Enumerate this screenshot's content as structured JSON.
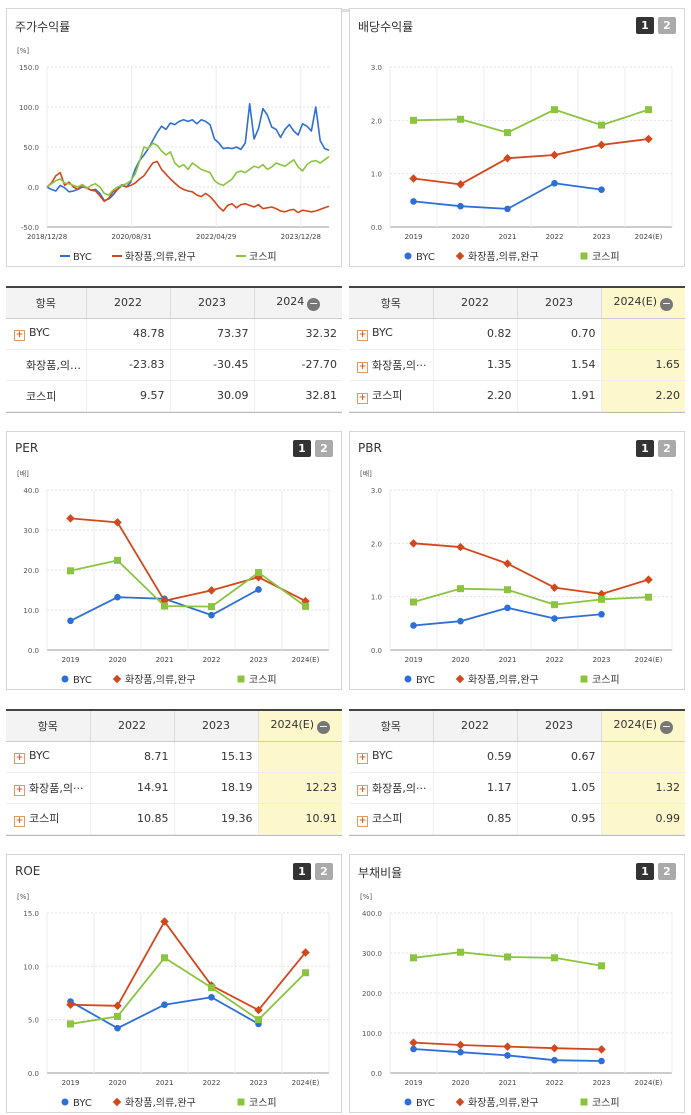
{
  "colors": {
    "byc": "#2d6fd6",
    "cosmetics": "#d2481c",
    "kospi": "#8bc43f"
  },
  "legend": {
    "byc": "BYC",
    "cosmetics": "화장품,의류,완구",
    "kospi": "코스피"
  },
  "buttons": {
    "one": "1",
    "two": "2"
  },
  "panels": {
    "return": {
      "title": "주가수익률"
    },
    "dividend": {
      "title": "배당수익률"
    },
    "per": {
      "title": "PER"
    },
    "pbr": {
      "title": "PBR"
    },
    "roe": {
      "title": "ROE"
    },
    "debt": {
      "title": "부채비율"
    }
  },
  "tables": {
    "return": {
      "header": [
        "항목",
        "2022",
        "2023",
        "2024"
      ],
      "rows": [
        {
          "name": "BYC",
          "vals": [
            "48.78",
            "73.37",
            "32.32"
          ]
        },
        {
          "name": "화장품,의…",
          "vals": [
            "-23.83",
            "-30.45",
            "-27.70"
          ]
        },
        {
          "name": "코스피",
          "vals": [
            "9.57",
            "30.09",
            "32.81"
          ]
        }
      ]
    },
    "dividend": {
      "header": [
        "항목",
        "2022",
        "2023",
        "2024(E)"
      ],
      "rows": [
        {
          "name": "BYC",
          "vals": [
            "0.82",
            "0.70",
            ""
          ]
        },
        {
          "name": "화장품,의···",
          "vals": [
            "1.35",
            "1.54",
            "1.65"
          ]
        },
        {
          "name": "코스피",
          "vals": [
            "2.20",
            "1.91",
            "2.20"
          ]
        }
      ]
    },
    "per": {
      "header": [
        "항목",
        "2022",
        "2023",
        "2024(E)"
      ],
      "rows": [
        {
          "name": "BYC",
          "vals": [
            "8.71",
            "15.13",
            ""
          ]
        },
        {
          "name": "화장품,의···",
          "vals": [
            "14.91",
            "18.19",
            "12.23"
          ]
        },
        {
          "name": "코스피",
          "vals": [
            "10.85",
            "19.36",
            "10.91"
          ]
        }
      ]
    },
    "pbr": {
      "header": [
        "항목",
        "2022",
        "2023",
        "2024(E)"
      ],
      "rows": [
        {
          "name": "BYC",
          "vals": [
            "0.59",
            "0.67",
            ""
          ]
        },
        {
          "name": "화장품,의···",
          "vals": [
            "1.17",
            "1.05",
            "1.32"
          ]
        },
        {
          "name": "코스피",
          "vals": [
            "0.85",
            "0.95",
            "0.99"
          ]
        }
      ]
    }
  },
  "chart_data": [
    {
      "id": "return",
      "type": "line",
      "unit": "[%]",
      "ylim": [
        -50,
        150
      ],
      "yticks": [
        "150.0",
        "100.0",
        "50.0",
        "0.0",
        "-50.0"
      ],
      "xticks": [
        "2018/12/28",
        "2020/08/31",
        "2022/04/29",
        "2023/12/28"
      ],
      "series": [
        {
          "name": "BYC",
          "values": [
            0,
            -3,
            -5,
            2,
            -1,
            -6,
            -5,
            -3,
            0,
            -1,
            -4,
            -3,
            -8,
            -17,
            -15,
            -10,
            -3,
            2,
            0,
            6,
            22,
            33,
            40,
            48,
            58,
            68,
            76,
            72,
            80,
            78,
            82,
            84,
            82,
            84,
            79,
            84,
            82,
            78,
            60,
            55,
            48,
            49,
            48,
            50,
            47,
            55,
            104,
            60,
            73,
            98,
            90,
            75,
            72,
            62,
            72,
            78,
            70,
            65,
            79,
            76,
            70,
            100,
            58,
            48,
            46
          ]
        },
        {
          "name": "화장품,의류,완구",
          "values": [
            0,
            5,
            14,
            18,
            2,
            6,
            0,
            -3,
            3,
            -1,
            -4,
            -5,
            -11,
            -18,
            -14,
            -6,
            -3,
            3,
            0,
            2,
            5,
            10,
            14,
            22,
            30,
            32,
            22,
            16,
            10,
            5,
            0,
            -3,
            -5,
            -6,
            -10,
            -12,
            -8,
            -12,
            -18,
            -25,
            -30,
            -23,
            -21,
            -26,
            -22,
            -21,
            -23,
            -25,
            -22,
            -27,
            -26,
            -25,
            -27,
            -30,
            -31,
            -29,
            -28,
            -32,
            -29,
            -30,
            -31,
            -30,
            -28,
            -26,
            -24
          ]
        },
        {
          "name": "코스피",
          "values": [
            0,
            4,
            8,
            10,
            5,
            4,
            2,
            0,
            3,
            -2,
            2,
            4,
            0,
            -8,
            -10,
            -4,
            0,
            2,
            4,
            8,
            16,
            32,
            50,
            48,
            55,
            52,
            45,
            40,
            44,
            30,
            25,
            28,
            22,
            30,
            26,
            22,
            20,
            18,
            8,
            4,
            2,
            6,
            10,
            18,
            20,
            18,
            22,
            26,
            24,
            28,
            22,
            25,
            30,
            28,
            26,
            30,
            34,
            25,
            20,
            28,
            32,
            33,
            30,
            34,
            38
          ]
        }
      ]
    },
    {
      "id": "dividend",
      "type": "line",
      "unit": "",
      "ylim": [
        0,
        3
      ],
      "yticks": [
        "3.0",
        "2.0",
        "1.0",
        "0.0"
      ],
      "categories": [
        "2019",
        "2020",
        "2021",
        "2022",
        "2023",
        "2024(E)"
      ],
      "series": [
        {
          "name": "BYC",
          "values": [
            0.48,
            0.39,
            0.34,
            0.82,
            0.7,
            null
          ]
        },
        {
          "name": "화장품,의류,완구",
          "values": [
            0.91,
            0.8,
            1.29,
            1.35,
            1.54,
            1.65
          ]
        },
        {
          "name": "코스피",
          "values": [
            2.0,
            2.02,
            1.77,
            2.2,
            1.91,
            2.2
          ]
        }
      ]
    },
    {
      "id": "per",
      "type": "line",
      "unit": "[배]",
      "ylim": [
        0,
        40
      ],
      "yticks": [
        "40.0",
        "30.0",
        "20.0",
        "10.0",
        "0.0"
      ],
      "categories": [
        "2019",
        "2020",
        "2021",
        "2022",
        "2023",
        "2024(E)"
      ],
      "series": [
        {
          "name": "BYC",
          "values": [
            7.3,
            13.2,
            12.8,
            8.71,
            15.13,
            null
          ]
        },
        {
          "name": "화장품,의류,완구",
          "values": [
            32.9,
            31.9,
            12.3,
            14.91,
            18.19,
            12.23
          ]
        },
        {
          "name": "코스피",
          "values": [
            19.8,
            22.4,
            11.0,
            10.85,
            19.36,
            10.91
          ]
        }
      ]
    },
    {
      "id": "pbr",
      "type": "line",
      "unit": "[배]",
      "ylim": [
        0,
        3
      ],
      "yticks": [
        "3.0",
        "2.0",
        "1.0",
        "0.0"
      ],
      "categories": [
        "2019",
        "2020",
        "2021",
        "2022",
        "2023",
        "2024(E)"
      ],
      "series": [
        {
          "name": "BYC",
          "values": [
            0.46,
            0.54,
            0.79,
            0.59,
            0.67,
            null
          ]
        },
        {
          "name": "화장품,의류,완구",
          "values": [
            2.0,
            1.93,
            1.62,
            1.17,
            1.05,
            1.32
          ]
        },
        {
          "name": "코스피",
          "values": [
            0.9,
            1.15,
            1.13,
            0.85,
            0.95,
            0.99
          ]
        }
      ]
    },
    {
      "id": "roe",
      "type": "line",
      "unit": "[%]",
      "ylim": [
        0,
        15
      ],
      "yticks": [
        "15.0",
        "10.0",
        "5.0",
        "0.0"
      ],
      "categories": [
        "2019",
        "2020",
        "2021",
        "2022",
        "2023",
        "2024(E)"
      ],
      "series": [
        {
          "name": "BYC",
          "values": [
            6.7,
            4.2,
            6.4,
            7.1,
            4.6,
            null
          ]
        },
        {
          "name": "화장품,의류,완구",
          "values": [
            6.4,
            6.3,
            14.2,
            8.2,
            5.9,
            11.3
          ]
        },
        {
          "name": "코스피",
          "values": [
            4.6,
            5.3,
            10.8,
            8.0,
            5.0,
            9.4
          ]
        }
      ]
    },
    {
      "id": "debt",
      "type": "line",
      "unit": "[%]",
      "ylim": [
        0,
        400
      ],
      "yticks": [
        "400.0",
        "300.0",
        "200.0",
        "100.0",
        "0.0"
      ],
      "categories": [
        "2019",
        "2020",
        "2021",
        "2022",
        "2023",
        "2024(E)"
      ],
      "series": [
        {
          "name": "BYC",
          "values": [
            60,
            52,
            44,
            32,
            30,
            null
          ]
        },
        {
          "name": "화장품,의류,완구",
          "values": [
            76,
            70,
            66,
            62,
            59,
            null
          ]
        },
        {
          "name": "코스피",
          "values": [
            288,
            302,
            290,
            288,
            268,
            null
          ]
        }
      ]
    }
  ]
}
